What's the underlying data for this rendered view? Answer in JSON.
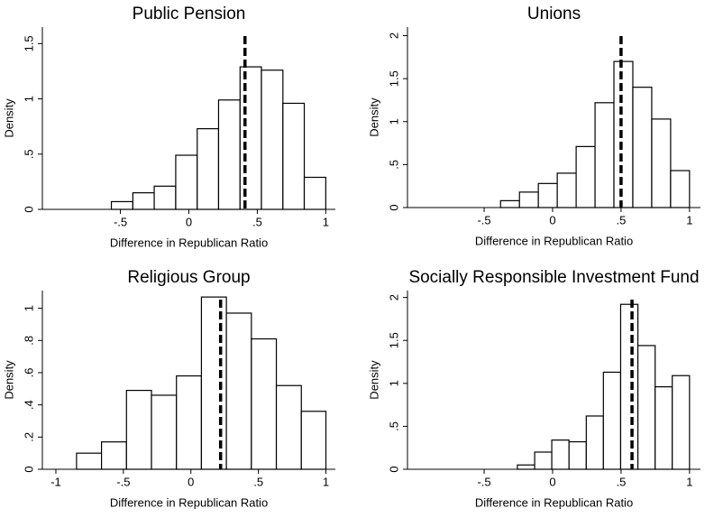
{
  "chart_data": [
    {
      "type": "histogram",
      "title": "Public Pension",
      "xlabel": "Difference in Republican Ratio",
      "ylabel": "Density",
      "bins": [
        -0.566,
        -0.409,
        -0.253,
        -0.096,
        0.061,
        0.217,
        0.374,
        0.53,
        0.687,
        0.843,
        1.0
      ],
      "counts": [
        0.07,
        0.15,
        0.21,
        0.49,
        0.73,
        0.99,
        1.29,
        1.26,
        0.96,
        0.29
      ],
      "vline": 0.41,
      "xlim": [
        -1.07,
        1.07
      ],
      "ylim": [
        0,
        1.65
      ],
      "xticks": [
        {
          "value": -0.5,
          "label": "-.5"
        },
        0,
        {
          "value": 0.5,
          "label": ".5"
        },
        1
      ],
      "yticks": [
        0,
        {
          "value": 0.5,
          "label": ".5"
        },
        1,
        1.5
      ]
    },
    {
      "type": "histogram",
      "title": "Unions",
      "xlabel": "Difference in Republican Ratio",
      "ylabel": "Density",
      "bins": [
        -0.38,
        -0.242,
        -0.104,
        0.034,
        0.172,
        0.31,
        0.448,
        0.586,
        0.724,
        0.862,
        1.0
      ],
      "counts": [
        0.08,
        0.18,
        0.28,
        0.4,
        0.71,
        1.22,
        1.7,
        1.4,
        1.03,
        0.43
      ],
      "vline": 0.5,
      "xlim": [
        -1.06,
        1.08
      ],
      "ylim": [
        0,
        2.1
      ],
      "xticks": [
        {
          "value": -0.5,
          "label": "-.5"
        },
        0,
        {
          "value": 0.5,
          "label": ".5"
        },
        1
      ],
      "yticks": [
        0,
        {
          "value": 0.5,
          "label": ".5"
        },
        1,
        1.5,
        2
      ]
    },
    {
      "type": "histogram",
      "title": "Religious Group",
      "xlabel": "Difference in Republican Ratio",
      "ylabel": "Density",
      "bins": [
        -0.847,
        -0.662,
        -0.477,
        -0.292,
        -0.107,
        0.078,
        0.263,
        0.448,
        0.633,
        0.818,
        1.0
      ],
      "counts": [
        0.1,
        0.17,
        0.49,
        0.46,
        0.58,
        1.07,
        0.97,
        0.81,
        0.52,
        0.36
      ],
      "vline": 0.22,
      "xlim": [
        -1.1,
        1.07
      ],
      "ylim": [
        0,
        1.11
      ],
      "xticks": [
        -1,
        {
          "value": -0.5,
          "label": "-.5"
        },
        0,
        {
          "value": 0.5,
          "label": ".5"
        },
        1
      ],
      "yticks": [
        0,
        {
          "value": 0.2,
          "label": ".2"
        },
        {
          "value": 0.4,
          "label": ".4"
        },
        {
          "value": 0.6,
          "label": ".6"
        },
        {
          "value": 0.8,
          "label": ".8"
        },
        1
      ]
    },
    {
      "type": "histogram",
      "title": "Socially Responsible Investment Fund",
      "xlabel": "Difference in Republican Ratio",
      "ylabel": "Density",
      "bins": [
        -0.257,
        -0.131,
        -0.006,
        0.12,
        0.246,
        0.371,
        0.497,
        0.623,
        0.749,
        0.874,
        1.0
      ],
      "counts": [
        0.05,
        0.2,
        0.34,
        0.32,
        0.62,
        1.13,
        1.92,
        1.44,
        0.96,
        1.09
      ],
      "vline": 0.58,
      "xlim": [
        -1.06,
        1.08
      ],
      "ylim": [
        0,
        2.08
      ],
      "xticks": [
        {
          "value": -0.5,
          "label": "-.5"
        },
        0,
        {
          "value": 0.5,
          "label": ".5"
        },
        1
      ],
      "yticks": [
        0,
        {
          "value": 0.5,
          "label": ".5"
        },
        1,
        1.5,
        2
      ]
    }
  ]
}
